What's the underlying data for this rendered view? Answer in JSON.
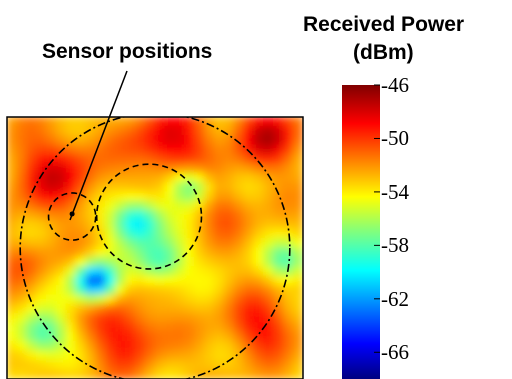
{
  "chart_data": {
    "type": "heatmap",
    "title": "",
    "annotation": "Sensor positions",
    "colorbar": {
      "title_line1": "Received Power",
      "title_line2": "(dBm)",
      "tick_labels": [
        "-46",
        "-50",
        "-54",
        "-58",
        "-62",
        "-66"
      ],
      "ticks": [
        -46,
        -50,
        -54,
        -58,
        -62,
        -66
      ],
      "range": [
        -68,
        -46
      ],
      "colormap": "jet"
    },
    "field": {
      "description_of_values": "received power in dBm over a square area",
      "grid_cols": 30,
      "grid_rows": 28,
      "background_level": -53,
      "hotspots": [
        {
          "cx": 0.16,
          "cy": 0.22,
          "sigma": 0.1,
          "value": -48.5
        },
        {
          "cx": 0.55,
          "cy": 0.1,
          "sigma": 0.09,
          "value": -48.0
        },
        {
          "cx": 0.88,
          "cy": 0.08,
          "sigma": 0.08,
          "value": -48.0
        },
        {
          "cx": 0.4,
          "cy": 0.83,
          "sigma": 0.09,
          "value": -49.0
        },
        {
          "cx": 0.86,
          "cy": 0.8,
          "sigma": 0.08,
          "value": -49.0
        },
        {
          "cx": 0.73,
          "cy": 0.36,
          "sigma": 0.07,
          "value": -51.0
        },
        {
          "cx": 0.06,
          "cy": 0.55,
          "sigma": 0.06,
          "value": -51.0
        }
      ],
      "coldspots": [
        {
          "cx": 0.44,
          "cy": 0.4,
          "sigma": 0.06,
          "value": -61.0
        },
        {
          "cx": 0.3,
          "cy": 0.63,
          "sigma": 0.05,
          "value": -64.0
        },
        {
          "cx": 0.52,
          "cy": 0.55,
          "sigma": 0.06,
          "value": -59.0
        },
        {
          "cx": 0.62,
          "cy": 0.27,
          "sigma": 0.05,
          "value": -58.5
        },
        {
          "cx": 0.12,
          "cy": 0.83,
          "sigma": 0.06,
          "value": -59.0
        },
        {
          "cx": 0.95,
          "cy": 0.55,
          "sigma": 0.05,
          "value": -58.0
        }
      ]
    },
    "overlay_circles": [
      {
        "cx": 0.5,
        "cy": 0.5,
        "r_frac": 0.49,
        "style": "dash-dot"
      },
      {
        "cx": 0.48,
        "cy": 0.38,
        "r_frac": 0.2,
        "style": "dashed"
      },
      {
        "cx": 0.22,
        "cy": 0.38,
        "r_frac": 0.09,
        "style": "dashed"
      }
    ],
    "sensor_points": [
      {
        "x": 0.22,
        "y": 0.37
      }
    ]
  }
}
